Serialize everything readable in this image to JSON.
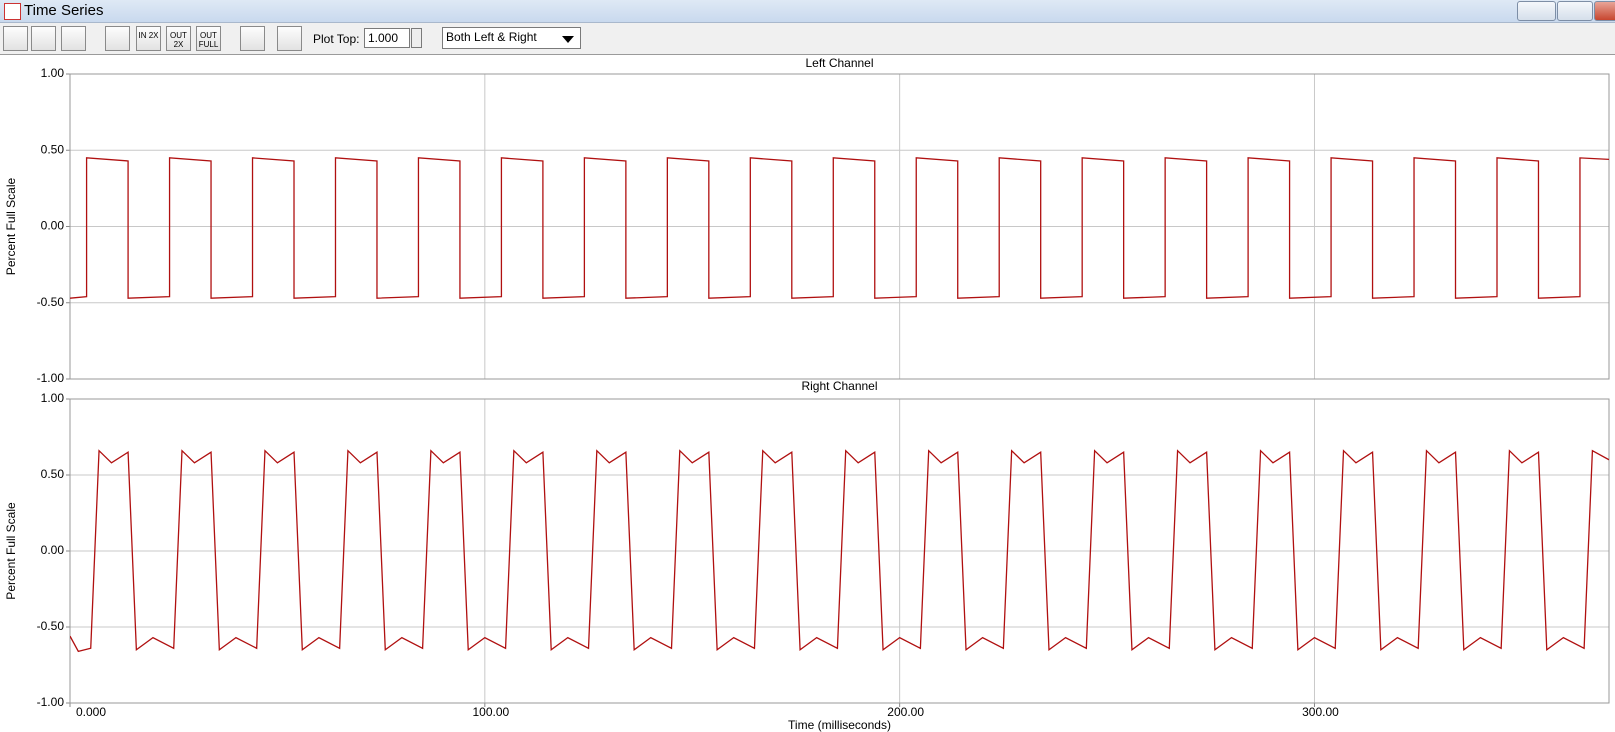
{
  "window": {
    "title": "Time Series"
  },
  "toolbar": {
    "buttons": [
      "IN 2X",
      "OUT 2X",
      "OUT FULL"
    ],
    "plot_top_label": "Plot Top:",
    "plot_top_value": "1.000",
    "channel_select": "Both Left & Right"
  },
  "chart_data": [
    {
      "type": "line",
      "title": "Left Channel",
      "ylabel": "Percent Full Scale",
      "color": "#b01010",
      "grid": true,
      "xlim": [
        0,
        371
      ],
      "ylim": [
        -1,
        1
      ],
      "xticks": [
        0,
        100,
        200,
        300
      ],
      "yticks": [
        {
          "value": -1,
          "label": "-1.00"
        },
        {
          "value": -0.5,
          "label": "-0.50"
        },
        {
          "value": 0,
          "label": "0.00"
        },
        {
          "value": 0.5,
          "label": "0.50"
        },
        {
          "value": 1,
          "label": "1.00"
        }
      ],
      "x": [
        0,
        4,
        4,
        14,
        14,
        24,
        24,
        34,
        34,
        44,
        44,
        54,
        54,
        64,
        64,
        74,
        74,
        84,
        84,
        94,
        94,
        104,
        104,
        114,
        114,
        124,
        124,
        134,
        134,
        144,
        144,
        154,
        154,
        164,
        164,
        174,
        174,
        184,
        184,
        194,
        194,
        204,
        204,
        214,
        214,
        224,
        224,
        234,
        234,
        244,
        244,
        254,
        254,
        264,
        264,
        274,
        274,
        284,
        284,
        294,
        294,
        304,
        304,
        314,
        314,
        324,
        324,
        334,
        334,
        344,
        344,
        354,
        354,
        364,
        364,
        371
      ],
      "values": [
        -0.47,
        -0.46,
        0.45,
        0.43,
        -0.47,
        -0.46,
        0.45,
        0.43,
        -0.47,
        -0.46,
        0.45,
        0.43,
        -0.47,
        -0.46,
        0.45,
        0.43,
        -0.47,
        -0.46,
        0.45,
        0.43,
        -0.47,
        -0.46,
        0.45,
        0.43,
        -0.47,
        -0.46,
        0.45,
        0.43,
        -0.47,
        -0.46,
        0.45,
        0.43,
        -0.47,
        -0.46,
        0.45,
        0.43,
        -0.47,
        -0.46,
        0.45,
        0.43,
        -0.47,
        -0.46,
        0.45,
        0.43,
        -0.47,
        -0.46,
        0.45,
        0.43,
        -0.47,
        -0.46,
        0.45,
        0.43,
        -0.47,
        -0.46,
        0.45,
        0.43,
        -0.47,
        -0.46,
        0.45,
        0.43,
        -0.47,
        -0.46,
        0.45,
        0.43,
        -0.47,
        -0.46,
        0.45,
        0.43,
        -0.47,
        -0.46,
        0.45,
        0.43,
        -0.47,
        -0.46,
        0.45,
        0.44
      ]
    },
    {
      "type": "line",
      "title": "Right Channel",
      "ylabel": "Percent Full Scale",
      "xlabel": "Time (milliseconds)",
      "color": "#b01010",
      "grid": true,
      "xlim": [
        0,
        371
      ],
      "ylim": [
        -1,
        1
      ],
      "xticks": [
        {
          "value": 0,
          "label": "0.000"
        },
        {
          "value": 100,
          "label": "100.00"
        },
        {
          "value": 200,
          "label": "200.00"
        },
        {
          "value": 300,
          "label": "300.00"
        }
      ],
      "yticks": [
        {
          "value": -1,
          "label": "-1.00"
        },
        {
          "value": -0.5,
          "label": "-0.50"
        },
        {
          "value": 0,
          "label": "0.00"
        },
        {
          "value": 0.5,
          "label": "0.50"
        },
        {
          "value": 1,
          "label": "1.00"
        }
      ],
      "x": [
        0,
        2,
        5,
        7,
        10,
        14,
        16,
        20,
        25,
        27,
        30,
        34,
        36,
        40,
        45,
        47,
        50,
        54,
        56,
        60,
        65,
        67,
        70,
        74,
        76,
        80,
        85,
        87,
        90,
        94,
        96,
        100,
        105,
        107,
        110,
        114,
        116,
        120,
        125,
        127,
        130,
        134,
        136,
        140,
        145,
        147,
        150,
        154,
        156,
        160,
        165,
        167,
        170,
        174,
        176,
        180,
        185,
        187,
        190,
        194,
        196,
        200,
        205,
        207,
        210,
        214,
        216,
        220,
        225,
        227,
        230,
        234,
        236,
        240,
        245,
        247,
        250,
        254,
        256,
        260,
        265,
        267,
        270,
        274,
        276,
        280,
        285,
        287,
        290,
        294,
        296,
        300,
        305,
        307,
        310,
        314,
        316,
        320,
        325,
        327,
        330,
        334,
        336,
        340,
        345,
        347,
        350,
        354,
        356,
        360,
        365,
        367,
        371
      ],
      "values": [
        -0.56,
        -0.66,
        -0.64,
        0.66,
        0.58,
        0.65,
        -0.65,
        -0.57,
        -0.64,
        0.66,
        0.58,
        0.65,
        -0.65,
        -0.57,
        -0.64,
        0.66,
        0.58,
        0.65,
        -0.65,
        -0.57,
        -0.64,
        0.66,
        0.58,
        0.65,
        -0.65,
        -0.57,
        -0.64,
        0.66,
        0.58,
        0.65,
        -0.65,
        -0.57,
        -0.64,
        0.66,
        0.58,
        0.65,
        -0.65,
        -0.57,
        -0.64,
        0.66,
        0.58,
        0.65,
        -0.65,
        -0.57,
        -0.64,
        0.66,
        0.58,
        0.65,
        -0.65,
        -0.57,
        -0.64,
        0.66,
        0.58,
        0.65,
        -0.65,
        -0.57,
        -0.64,
        0.66,
        0.58,
        0.65,
        -0.65,
        -0.57,
        -0.64,
        0.66,
        0.58,
        0.65,
        -0.65,
        -0.57,
        -0.64,
        0.66,
        0.58,
        0.65,
        -0.65,
        -0.57,
        -0.64,
        0.66,
        0.58,
        0.65,
        -0.65,
        -0.57,
        -0.64,
        0.66,
        0.58,
        0.65,
        -0.65,
        -0.57,
        -0.64,
        0.66,
        0.58,
        0.65,
        -0.65,
        -0.57,
        -0.64,
        0.66,
        0.58,
        0.65,
        -0.65,
        -0.57,
        -0.64,
        0.66,
        0.58,
        0.65,
        -0.65,
        -0.57,
        -0.64,
        0.66,
        0.58,
        0.65,
        -0.65,
        -0.57,
        -0.64,
        0.66,
        0.6
      ]
    }
  ]
}
